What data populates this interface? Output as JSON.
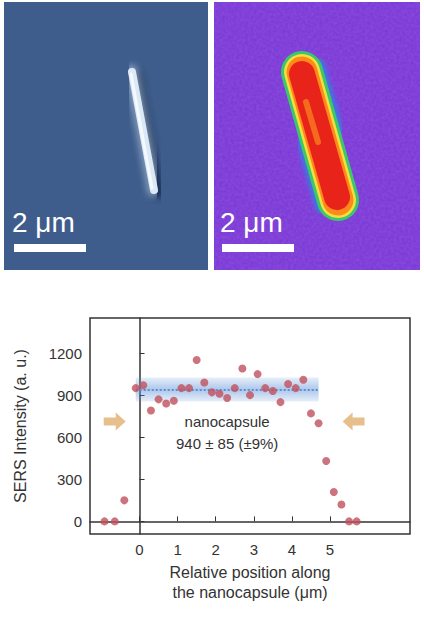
{
  "images": [
    {
      "scale_bar": "2 μm"
    },
    {
      "scale_bar": "2 μm"
    }
  ],
  "chart_data": {
    "type": "scatter",
    "xlabel": "Relative position along the nanocapsule (μm)",
    "ylabel": "SERS Intensity (a. u.)",
    "x": [
      -0.92,
      -0.65,
      -0.4,
      -0.1,
      0.1,
      0.3,
      0.5,
      0.7,
      0.9,
      1.1,
      1.3,
      1.5,
      1.7,
      1.9,
      2.1,
      2.3,
      2.5,
      2.7,
      2.9,
      3.1,
      3.3,
      3.5,
      3.7,
      3.9,
      4.1,
      4.3,
      4.5,
      4.7,
      4.9,
      5.1,
      5.3,
      5.5,
      5.7
    ],
    "values": [
      0,
      0,
      150,
      950,
      970,
      790,
      870,
      840,
      860,
      950,
      950,
      1150,
      990,
      920,
      910,
      880,
      950,
      1090,
      900,
      1050,
      950,
      930,
      850,
      980,
      950,
      1010,
      770,
      700,
      430,
      210,
      120,
      0,
      0
    ],
    "color": "#c0505e",
    "marker": "circle",
    "xlim": [
      -1.3,
      7.1
    ],
    "ylim": [
      -90,
      1450
    ],
    "xticks": [
      0,
      1,
      2,
      3,
      4,
      5
    ],
    "yticks": [
      0,
      300,
      600,
      900,
      1200
    ],
    "grid": false,
    "band": {
      "mean": 940,
      "error": 85,
      "x": [
        -0.1,
        4.7
      ],
      "color": "#5b8fd6",
      "label": "nanocapsule",
      "value_label": "940 ± 85 (±9%)"
    }
  }
}
